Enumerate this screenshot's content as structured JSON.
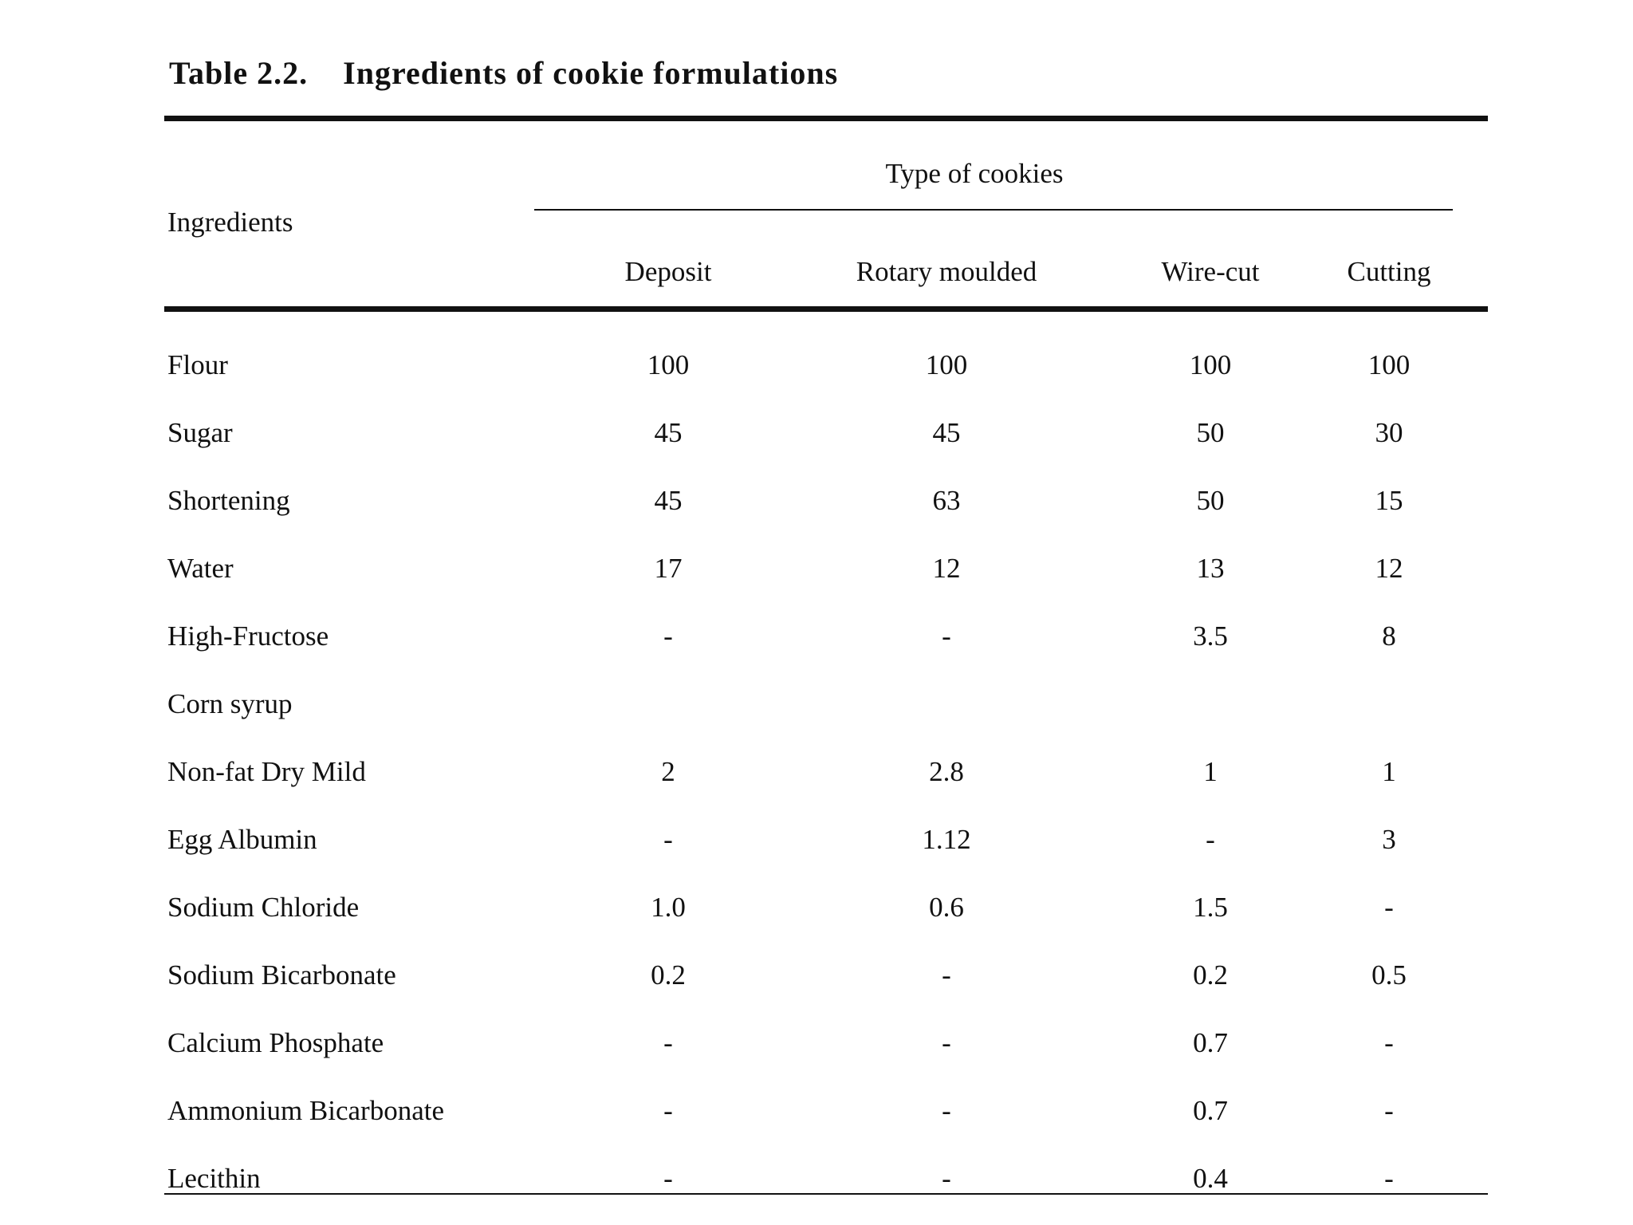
{
  "caption": {
    "number": "Table 2.2.",
    "title": "Ingredients of cookie formulations"
  },
  "header": {
    "row_header": "Ingredients",
    "group": "Type of cookies",
    "columns": [
      "Deposit",
      "Rotary moulded",
      "Wire-cut",
      "Cutting"
    ]
  },
  "rows": [
    {
      "label": "Flour",
      "values": [
        "100",
        "100",
        "100",
        "100"
      ]
    },
    {
      "label": "Sugar",
      "values": [
        "45",
        "45",
        "50",
        "30"
      ]
    },
    {
      "label": "Shortening",
      "values": [
        "45",
        "63",
        "50",
        "15"
      ]
    },
    {
      "label": "Water",
      "values": [
        "17",
        "12",
        "13",
        "12"
      ]
    },
    {
      "label": "High-Fructose",
      "values": [
        "-",
        "-",
        "3.5",
        "8"
      ]
    },
    {
      "label": "Corn syrup",
      "values": [
        "",
        "",
        "",
        ""
      ]
    },
    {
      "label": "Non-fat Dry Mild",
      "values": [
        "2",
        "2.8",
        "1",
        "1"
      ]
    },
    {
      "label": "Egg Albumin",
      "values": [
        "-",
        "1.12",
        "-",
        "3"
      ]
    },
    {
      "label": "Sodium Chloride",
      "values": [
        "1.0",
        "0.6",
        "1.5",
        "-"
      ]
    },
    {
      "label": "Sodium Bicarbonate",
      "values": [
        "0.2",
        "-",
        "0.2",
        "0.5"
      ]
    },
    {
      "label": "Calcium Phosphate",
      "values": [
        "-",
        "-",
        "0.7",
        "-"
      ]
    },
    {
      "label": "Ammonium Bicarbonate",
      "values": [
        "-",
        "-",
        "0.7",
        "-"
      ]
    },
    {
      "label": "Lecithin",
      "values": [
        "-",
        "-",
        "0.4",
        "-"
      ]
    }
  ]
}
